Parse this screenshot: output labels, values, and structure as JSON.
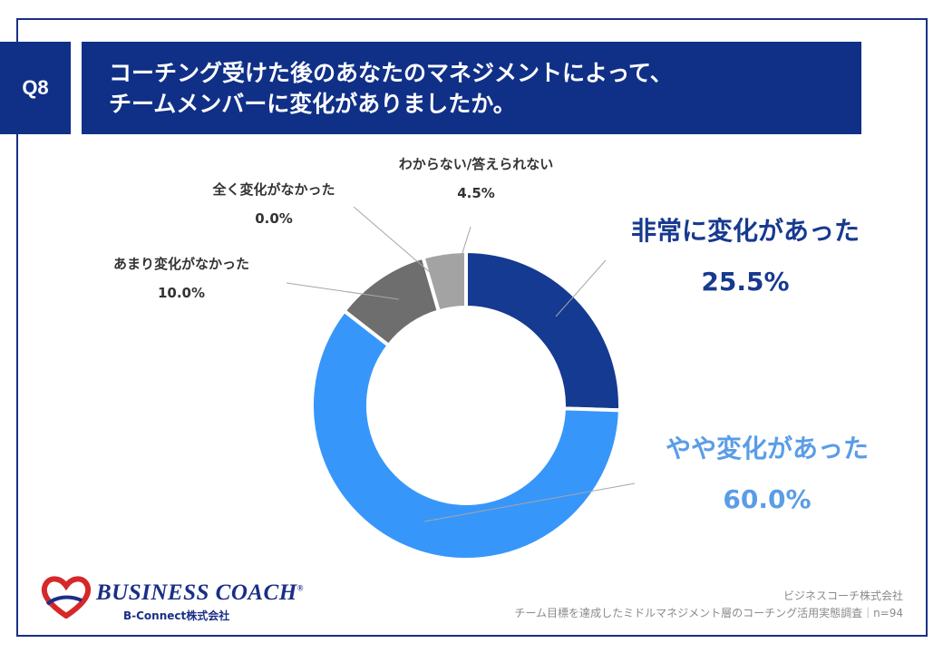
{
  "question_badge": "Q8",
  "title_lines": [
    "コーチング受けた後のあなたのマネジメントによって、",
    "チームメンバーに変化がありましたか。"
  ],
  "chart_data": {
    "type": "pie",
    "style": "donut",
    "slices": [
      {
        "label": "非常に変化があった",
        "value": 25.5,
        "value_label": "25.5%",
        "color": "#153a91"
      },
      {
        "label": "やや変化があった",
        "value": 60.0,
        "value_label": "60.0%",
        "color": "#3796fa"
      },
      {
        "label": "あまり変化がなかった",
        "value": 10.0,
        "value_label": "10.0%",
        "color": "#6e6e6e"
      },
      {
        "label": "全く変化がなかった",
        "value": 0.0,
        "value_label": "0.0%",
        "color": "#7f7f7f"
      },
      {
        "label": "わからない/答えられない",
        "value": 4.5,
        "value_label": "4.5%",
        "color": "#a3a3a3"
      }
    ]
  },
  "footer": {
    "logo_text": "BUSINESS COACH",
    "logo_registered": "®",
    "logo_sub": "B-Connect株式会社",
    "company": "ビジネスコーチ株式会社",
    "survey": "チーム目標を達成したミドルマネジメント層のコーチング活用実態調査｜n=94"
  }
}
